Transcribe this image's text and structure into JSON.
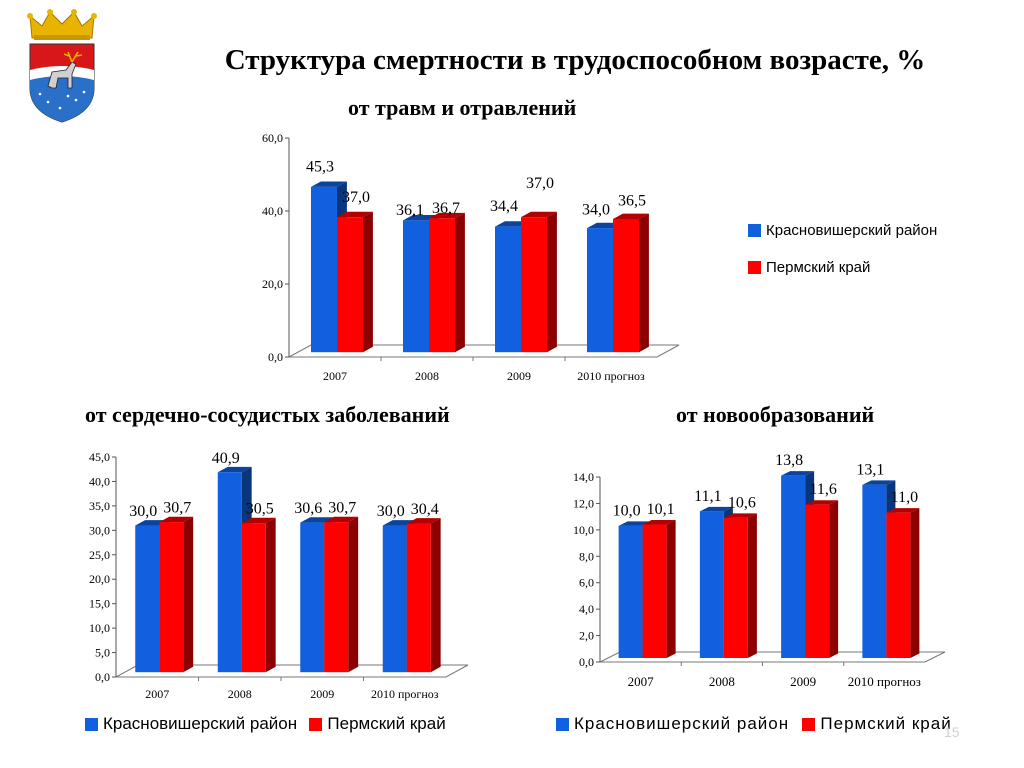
{
  "page": {
    "title": "Структура смертности в трудоспособном возрасте, %",
    "page_number": "15"
  },
  "colors": {
    "blue": "#1060e0",
    "red": "#ff0000"
  },
  "legend": {
    "blue_label": "Красновишерский район",
    "red_label": "Пермский край"
  },
  "chart_data": [
    {
      "type": "bar",
      "title": "от травм и отравлений",
      "categories": [
        "2007",
        "2008",
        "2009",
        "2010 прогноз"
      ],
      "series": [
        {
          "name": "Красновишерский район",
          "values": [
            45.3,
            36.1,
            34.4,
            34.0
          ],
          "labels": [
            "45,3",
            "36,1",
            "34,4",
            "34,0"
          ]
        },
        {
          "name": "Пермский край",
          "values": [
            37.0,
            36.7,
            37.0,
            36.5
          ],
          "labels": [
            "37,0",
            "36,7",
            "37,0",
            "36,5"
          ]
        }
      ],
      "yticks": [
        "0,0",
        "20,0",
        "40,0",
        "60,0"
      ],
      "ylim": [
        0,
        60
      ],
      "legend_position": "right"
    },
    {
      "type": "bar",
      "title": "от сердечно-сосудистых заболеваний",
      "categories": [
        "2007",
        "2008",
        "2009",
        "2010 прогноз"
      ],
      "series": [
        {
          "name": "Красновишерский район",
          "values": [
            30.0,
            40.9,
            30.6,
            30.0
          ],
          "labels": [
            "30,0",
            "40,9",
            "30,6",
            "30,0"
          ]
        },
        {
          "name": "Пермский край",
          "values": [
            30.7,
            30.5,
            30.7,
            30.4
          ],
          "labels": [
            "30,7",
            "30,5",
            "30,7",
            "30,4"
          ]
        }
      ],
      "yticks": [
        "0,0",
        "5,0",
        "10,0",
        "15,0",
        "20,0",
        "25,0",
        "30,0",
        "35,0",
        "40,0",
        "45,0"
      ],
      "ylim": [
        0,
        45
      ],
      "legend_position": "bottom"
    },
    {
      "type": "bar",
      "title": "от новообразований",
      "categories": [
        "2007",
        "2008",
        "2009",
        "2010 прогноз"
      ],
      "series": [
        {
          "name": "Красновишерский район",
          "values": [
            10.0,
            11.1,
            13.8,
            13.1
          ],
          "labels": [
            "10,0",
            "11,1",
            "13,8",
            "13,1"
          ]
        },
        {
          "name": "Пермский край",
          "values": [
            10.1,
            10.6,
            11.6,
            11.0
          ],
          "labels": [
            "10,1",
            "10,6",
            "11,6",
            "11,0"
          ]
        }
      ],
      "yticks": [
        "0,0",
        "2,0",
        "4,0",
        "6,0",
        "8,0",
        "10,0",
        "12,0",
        "14,0"
      ],
      "ylim": [
        0,
        14
      ],
      "legend_position": "bottom"
    }
  ]
}
